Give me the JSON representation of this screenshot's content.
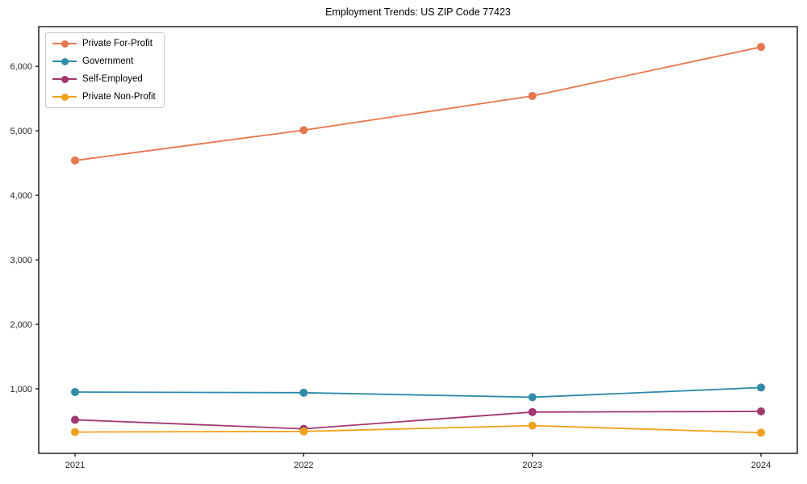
{
  "chart_data": {
    "type": "line",
    "title": "Employment Trends: US ZIP Code 77423",
    "x": [
      2021,
      2022,
      2023,
      2024
    ],
    "series": [
      {
        "name": "Private For-Profit",
        "color": "#E8764B",
        "values": [
          4540,
          5010,
          5540,
          6300
        ]
      },
      {
        "name": "Government",
        "color": "#2E8BAB",
        "values": [
          950,
          940,
          870,
          1020
        ]
      },
      {
        "name": "Self-Employed",
        "color": "#A23670",
        "values": [
          520,
          380,
          640,
          650
        ]
      },
      {
        "name": "Private Non-Profit",
        "color": "#F2A11B",
        "values": [
          330,
          340,
          430,
          320
        ]
      }
    ],
    "xlabel": "",
    "ylabel": "",
    "ylim": [
      0,
      6615
    ],
    "yticks": [
      1000,
      2000,
      3000,
      4000,
      5000,
      6000
    ],
    "ytick_labels": [
      "1,000",
      "2,000",
      "3,000",
      "4,000",
      "5,000",
      "6,000"
    ],
    "xtick_labels": [
      "2021",
      "2022",
      "2023",
      "2024"
    ],
    "grid": false,
    "legend_position": "upper-left",
    "axis_color": "#000000",
    "tick_label_color": "#262626"
  }
}
